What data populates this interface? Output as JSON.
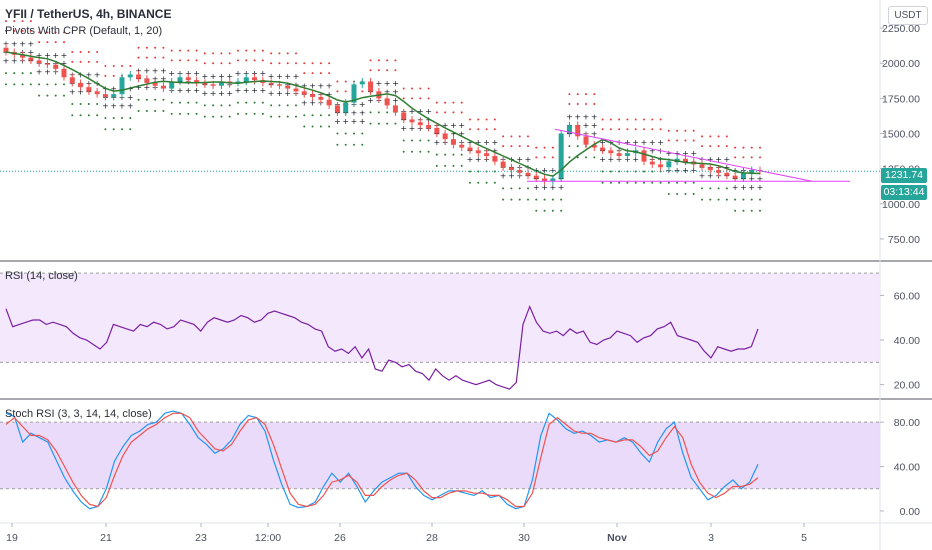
{
  "header": {
    "title": "YFII / TetherUS, 4h, BINANCE",
    "indicator": "Pivots With CPR (Default, 1, 20)",
    "currency_button": "USDT"
  },
  "price_tags": {
    "last_price": "1231.74",
    "countdown": "03:13:44",
    "color": "#26a69a"
  },
  "rsi_pane": {
    "label": "RSI (14, close)"
  },
  "stoch_pane": {
    "label": "Stoch RSI (3, 3, 14, 14, close)"
  },
  "chart_data": [
    {
      "type": "candlestick",
      "pane": "price",
      "y_ticks": [
        750,
        1000,
        1250,
        1500,
        1750,
        2000,
        2250
      ],
      "y_tick_labels": [
        "750.00",
        "1000.00",
        "1250.00",
        "1500.00",
        "1750.00",
        "2000.00",
        "2250.00"
      ],
      "ylim": [
        600,
        2450
      ],
      "x_ticks": [
        "19",
        "21",
        "23",
        "12:00",
        "26",
        "28",
        "30",
        "Nov",
        "3",
        "5"
      ],
      "close_series": [
        2080,
        2060,
        2040,
        2020,
        2000,
        1990,
        1960,
        1900,
        1860,
        1830,
        1800,
        1780,
        1760,
        1780,
        1900,
        1920,
        1890,
        1860,
        1840,
        1820,
        1870,
        1900,
        1880,
        1860,
        1850,
        1840,
        1870,
        1860,
        1870,
        1900,
        1880,
        1860,
        1850,
        1840,
        1820,
        1800,
        1780,
        1760,
        1740,
        1700,
        1650,
        1720,
        1850,
        1870,
        1800,
        1750,
        1700,
        1650,
        1600,
        1580,
        1560,
        1540,
        1500,
        1460,
        1420,
        1400,
        1380,
        1360,
        1340,
        1300,
        1260,
        1240,
        1220,
        1200,
        1180,
        1160,
        1180,
        1500,
        1560,
        1480,
        1420,
        1400,
        1380,
        1360,
        1340,
        1360,
        1380,
        1300,
        1280,
        1260,
        1300,
        1320,
        1300,
        1280,
        1260,
        1240,
        1220,
        1200,
        1180,
        1220,
        1240,
        1231.74
      ]
    },
    {
      "type": "line",
      "pane": "indicator",
      "title": "RSI (14, close)",
      "y_ticks": [
        20,
        40,
        60
      ],
      "y_tick_labels": [
        "20.00",
        "40.00",
        "60.00"
      ],
      "ylim": [
        14,
        75
      ],
      "band": [
        30,
        70
      ],
      "series": [
        {
          "color": "#7b1fa2",
          "values": [
            54,
            46,
            47,
            48,
            49,
            49,
            47,
            48,
            47,
            46,
            43,
            41,
            40,
            38,
            36,
            39,
            47,
            46,
            45,
            44,
            47,
            46,
            48,
            47,
            45,
            46,
            49,
            48,
            47,
            44,
            48,
            50,
            49,
            48,
            49,
            51,
            50,
            48,
            49,
            52,
            53,
            52,
            51,
            50,
            48,
            47,
            45,
            44,
            37,
            35,
            36,
            34,
            37,
            32,
            36,
            27,
            26,
            31,
            30,
            28,
            29,
            26,
            25,
            22,
            27,
            24,
            22,
            24,
            22,
            21,
            20,
            21,
            22,
            20,
            19,
            18,
            21,
            47,
            55,
            48,
            44,
            43,
            44,
            42,
            45,
            43,
            44,
            39,
            38,
            40,
            41,
            44,
            43,
            42,
            39,
            41,
            42,
            45,
            46,
            48,
            42,
            41,
            40,
            39,
            35,
            32,
            37,
            36,
            35,
            36,
            36,
            37,
            45
          ]
        }
      ]
    },
    {
      "type": "line",
      "pane": "indicator",
      "title": "Stoch RSI (3, 3, 14, 14, close)",
      "y_ticks": [
        0,
        40,
        80
      ],
      "y_tick_labels": [
        "0.00",
        "40.00",
        "80.00"
      ],
      "ylim": [
        -10,
        100
      ],
      "band": [
        20,
        80
      ],
      "series": [
        {
          "name": "K",
          "color": "#2196f3",
          "values": [
            88,
            85,
            62,
            70,
            66,
            62,
            46,
            30,
            18,
            8,
            2,
            4,
            20,
            45,
            58,
            68,
            72,
            78,
            80,
            88,
            90,
            88,
            78,
            66,
            60,
            52,
            56,
            64,
            78,
            86,
            84,
            72,
            46,
            24,
            6,
            3,
            4,
            8,
            22,
            34,
            26,
            34,
            22,
            8,
            18,
            26,
            30,
            34,
            34,
            22,
            14,
            10,
            14,
            18,
            18,
            16,
            14,
            18,
            12,
            14,
            6,
            2,
            4,
            28,
            68,
            88,
            82,
            74,
            70,
            72,
            68,
            62,
            64,
            62,
            66,
            62,
            52,
            44,
            62,
            74,
            80,
            52,
            30,
            20,
            10,
            14,
            22,
            28,
            20,
            26,
            42
          ]
        },
        {
          "name": "D",
          "color": "#ef5350",
          "values": [
            78,
            84,
            76,
            68,
            68,
            64,
            54,
            40,
            26,
            14,
            6,
            4,
            12,
            32,
            50,
            62,
            68,
            74,
            78,
            84,
            88,
            88,
            84,
            72,
            64,
            56,
            54,
            60,
            72,
            82,
            84,
            78,
            60,
            38,
            16,
            6,
            4,
            6,
            14,
            26,
            28,
            32,
            26,
            14,
            14,
            22,
            28,
            32,
            34,
            28,
            18,
            12,
            12,
            16,
            18,
            18,
            16,
            16,
            14,
            14,
            10,
            4,
            4,
            16,
            48,
            78,
            84,
            78,
            72,
            70,
            70,
            66,
            64,
            62,
            64,
            64,
            58,
            50,
            54,
            66,
            76,
            66,
            42,
            26,
            16,
            12,
            16,
            22,
            22,
            24,
            30
          ]
        }
      ]
    }
  ]
}
